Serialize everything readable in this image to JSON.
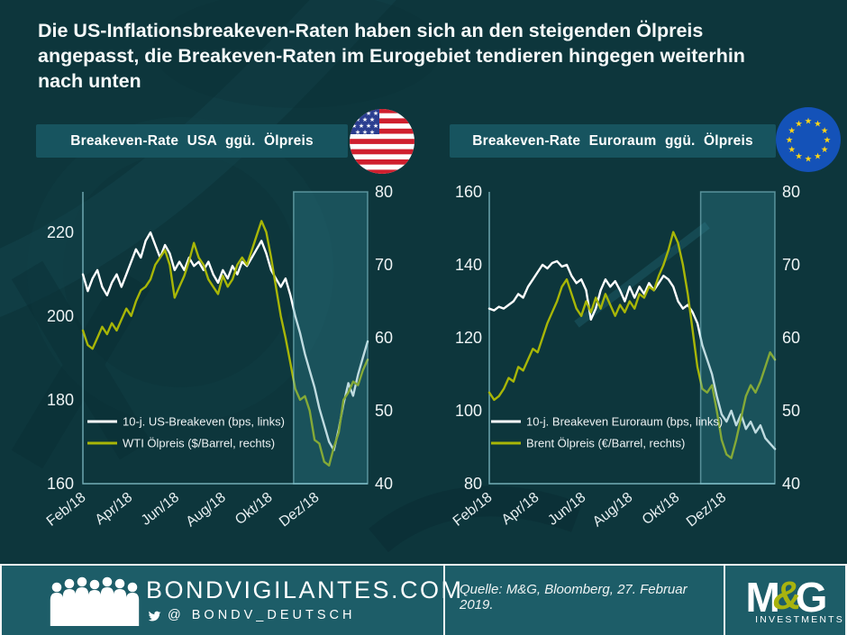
{
  "title": {
    "lines": [
      "Die US-Inflationsbreakeven-Raten haben sich an den steigenden Ölpreis",
      "angepasst, die Breakeven-Raten im Eurogebiet tendieren hingegen weiterhin",
      "nach unten"
    ]
  },
  "colors": {
    "background": "#0d363c",
    "panel_header": "#17545f",
    "footer": "#1d5d68",
    "accent_olive": "#a8b607",
    "line_white": "#ffffff",
    "axis": "#8fccd6",
    "highlight_fill": "rgba(56,142,158,0.32)",
    "highlight_stroke": "rgba(148,211,221,0.55)"
  },
  "chart_data": [
    {
      "type": "line",
      "title": "Breakeven-Rate USA ggü. Ölpreis",
      "flag_icon": "us-flag",
      "x_axis": {
        "labels": [
          "Feb/18",
          "Apr/18",
          "Jun/18",
          "Aug/18",
          "Okt/18",
          "Dez/18"
        ],
        "span_months": 12.2,
        "label_step_months": 2
      },
      "y_left": {
        "label_ticks": [
          220,
          200,
          180,
          160
        ],
        "min": 160,
        "max": 229.7
      },
      "y_right": {
        "label_ticks": [
          80,
          70,
          60,
          50,
          40
        ],
        "min": 40,
        "max": 80
      },
      "highlight_region": {
        "start_frac": 0.74,
        "end_frac": 1.0
      },
      "legend_position": "bottom-left-inside",
      "series": [
        {
          "name": "10-j. US-Breakeven (bps, links)",
          "axis": "left",
          "color": "#ffffff",
          "values": [
            210,
            206,
            209,
            211,
            207,
            205,
            208,
            210,
            207,
            210,
            213,
            216,
            214,
            218,
            220,
            217,
            214,
            217,
            215,
            211,
            213,
            211,
            214,
            212,
            213,
            211,
            213,
            210,
            208,
            211,
            209,
            212,
            210,
            213,
            212,
            214,
            216,
            218,
            215,
            211,
            209,
            207,
            209,
            205,
            200,
            196,
            191,
            187,
            183,
            178,
            174,
            170,
            168,
            173,
            179,
            184,
            181,
            186,
            190,
            194
          ]
        },
        {
          "name": "WTI Ölpreis ($/Barrel, rechts)",
          "axis": "right",
          "color": "#a8b607",
          "values": [
            61,
            59,
            58.5,
            60,
            61.5,
            60.5,
            62,
            61,
            62.5,
            64,
            63,
            65,
            66.5,
            67,
            68,
            70,
            71,
            72,
            70,
            65.5,
            67,
            68.5,
            70.5,
            73,
            71,
            70,
            68,
            67,
            66,
            68.5,
            67,
            68,
            70,
            71,
            70,
            72,
            74,
            76,
            74.5,
            71,
            67,
            63,
            60,
            56.5,
            53,
            51.5,
            52,
            50,
            46,
            45.5,
            43,
            42.5,
            45,
            47,
            51.5,
            52.5,
            54,
            53.5,
            55.5,
            57
          ]
        }
      ]
    },
    {
      "type": "line",
      "title": "Breakeven-Rate Euroraum ggü. Ölpreis",
      "flag_icon": "eu-flag",
      "x_axis": {
        "labels": [
          "Feb/18",
          "Apr/18",
          "Jun/18",
          "Aug/18",
          "Okt/18",
          "Dez/18"
        ],
        "span_months": 12.2,
        "label_step_months": 2
      },
      "y_left": {
        "label_ticks": [
          160,
          140,
          120,
          100,
          80
        ],
        "min": 80,
        "max": 160
      },
      "y_right": {
        "label_ticks": [
          80,
          70,
          60,
          50,
          40
        ],
        "min": 40,
        "max": 80
      },
      "highlight_region": {
        "start_frac": 0.74,
        "end_frac": 1.0
      },
      "legend_position": "bottom-left-inside",
      "series": [
        {
          "name": "10-j. Breakeven Euroraum (bps, links)",
          "axis": "left",
          "color": "#ffffff",
          "values": [
            128,
            127.5,
            128.5,
            128,
            129,
            130,
            132,
            131,
            134,
            136,
            138,
            140,
            139,
            140.5,
            141,
            139.5,
            140,
            137,
            135,
            136,
            133,
            125,
            128,
            133,
            136,
            134,
            135.5,
            133,
            130,
            134,
            131,
            134,
            132,
            135,
            133,
            135,
            137,
            136,
            134,
            130,
            128,
            129,
            127,
            124,
            118,
            114,
            110,
            104,
            99,
            97,
            100,
            96,
            99,
            95,
            97,
            94,
            96,
            92.5,
            91,
            89.5
          ]
        },
        {
          "name": "Brent Ölpreis (€/Barrel, rechts)",
          "axis": "right",
          "color": "#a8b607",
          "values": [
            52.5,
            51.5,
            52,
            53,
            54.5,
            54,
            56,
            55.5,
            57,
            58.5,
            58,
            60,
            62,
            63.5,
            65,
            67,
            68,
            66,
            64,
            63,
            65,
            63.5,
            65.5,
            64,
            66,
            64.5,
            63,
            64.5,
            63.5,
            65,
            64,
            66,
            65.5,
            67,
            66.5,
            68.5,
            70,
            72,
            74.5,
            73,
            70,
            66,
            61,
            56,
            53,
            52.5,
            53.5,
            50,
            46,
            44,
            43.5,
            46,
            49,
            52,
            53.5,
            52.5,
            54,
            56,
            58,
            57
          ]
        }
      ]
    }
  ],
  "footer": {
    "site": "BONDVIGILANTES.COM",
    "twitter": "@ BONDV_DEUTSCH",
    "source": "Quelle: M&G, Bloomberg, 27. Februar 2019.",
    "logo": {
      "m": "M",
      "amp": "&",
      "g": "G",
      "sub": "INVESTMENTS"
    }
  }
}
